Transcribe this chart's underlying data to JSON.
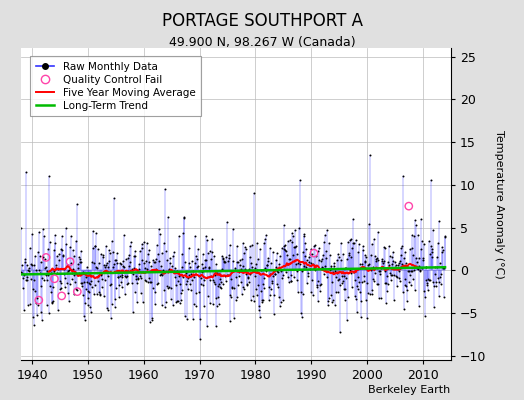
{
  "title": "PORTAGE SOUTHPORT A",
  "subtitle": "49.900 N, 98.267 W (Canada)",
  "ylabel": "Temperature Anomaly (°C)",
  "start_year": 1938,
  "end_year": 2014,
  "ylim": [
    -10.5,
    26
  ],
  "yticks": [
    -10,
    -5,
    0,
    5,
    10,
    15,
    20,
    25
  ],
  "xticks": [
    1940,
    1950,
    1960,
    1970,
    1980,
    1990,
    2000,
    2010
  ],
  "background_color": "#e0e0e0",
  "plot_bg_color": "#ffffff",
  "line_color_raw": "#3333ff",
  "dot_color_raw": "#000000",
  "ma_color": "#ff0000",
  "trend_color": "#00bb00",
  "qc_color": "#ff44aa",
  "annotation": "Berkeley Earth",
  "seed": 7
}
